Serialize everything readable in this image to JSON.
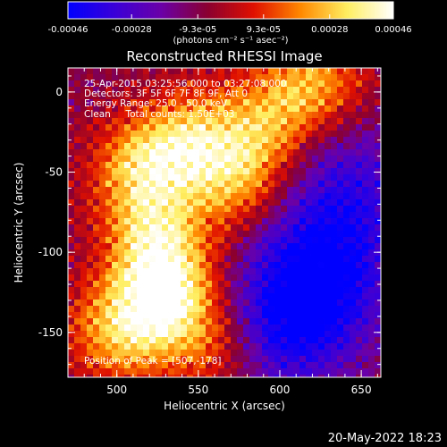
{
  "chart_data": {
    "type": "heatmap",
    "title": "Reconstructed RHESSI Image",
    "xlabel": "Heliocentric X (arcsec)",
    "ylabel": "Heliocentric Y (arcsec)",
    "xlim": [
      470,
      662
    ],
    "ylim": [
      -178,
      15
    ],
    "x_ticks": [
      "500",
      "550",
      "600",
      "650"
    ],
    "x_tick_values": [
      500,
      550,
      600,
      650
    ],
    "y_ticks": [
      "0",
      "-50",
      "-100",
      "-150"
    ],
    "y_tick_values": [
      0,
      -50,
      -100,
      -150
    ],
    "colorbar": {
      "tick_labels": [
        "-0.00046",
        "-0.00028",
        "-9.3e-05",
        "9.3e-05",
        "0.00028",
        "0.00046"
      ],
      "tick_values": [
        -0.00046,
        -0.00028,
        -9.3e-05,
        9.3e-05,
        0.00028,
        0.00046
      ],
      "range": [
        -0.00046,
        0.00046
      ],
      "unit_label": "(photons cm⁻² s⁻¹ asec⁻²)",
      "colors": [
        "#0000ff",
        "#3a00d8",
        "#6a00a8",
        "#8a0030",
        "#e01000",
        "#ff8800",
        "#ffee60",
        "#ffffff"
      ]
    },
    "annotations": [
      "25-Apr-2015 03:25:56.000 to 03:27:08.000",
      "Detectors: 3F 5F 6F 7F 8F 9F, Att 0",
      "Energy Range: 25.0 - 50.0 keV",
      "Clean     Total counts: 1.50E+03"
    ],
    "peak_label": "Position of Peak = [507,-178]",
    "peak": [
      507,
      -178
    ],
    "bright_regions": [
      {
        "x": 530,
        "y": -130,
        "level": 1.0
      },
      {
        "x": 525,
        "y": -95,
        "level": 0.85
      },
      {
        "x": 515,
        "y": -50,
        "level": 0.8
      },
      {
        "x": 545,
        "y": -30,
        "level": 0.75
      },
      {
        "x": 575,
        "y": -55,
        "level": 0.65
      },
      {
        "x": 590,
        "y": -20,
        "level": 0.55
      },
      {
        "x": 620,
        "y": 5,
        "level": 0.7
      },
      {
        "x": 500,
        "y": -150,
        "level": 0.7
      },
      {
        "x": 560,
        "y": -160,
        "level": 0.5
      }
    ],
    "dark_regions": [
      {
        "x": 625,
        "y": -115,
        "level": -0.9
      },
      {
        "x": 640,
        "y": -60,
        "level": -0.6
      },
      {
        "x": 600,
        "y": -150,
        "level": -0.7
      }
    ]
  },
  "footer_date": "20-May-2022 18:23"
}
